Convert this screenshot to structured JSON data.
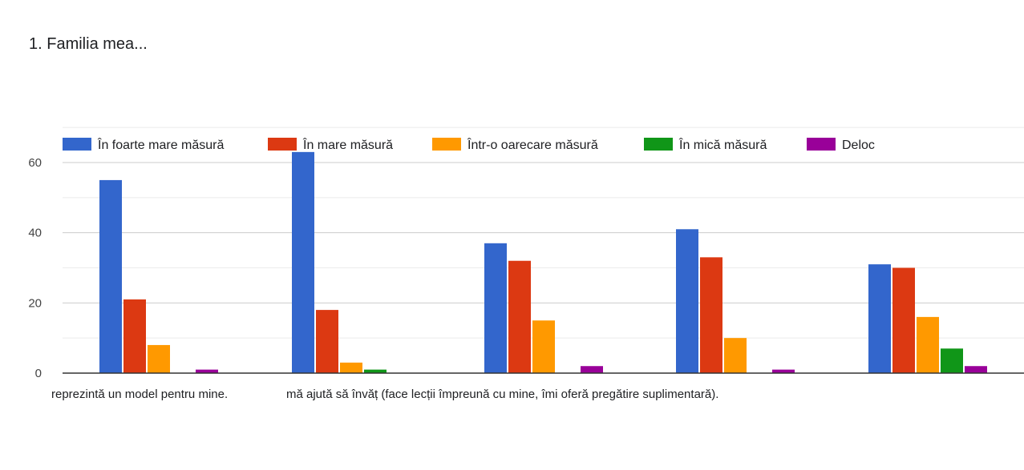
{
  "question_title": "1. Familia mea...",
  "chart_data": {
    "type": "bar",
    "title": "1. Familia mea...",
    "categories": [
      "reprezintă un model pentru mine.",
      "mă ajută să învăț (face lecții împreună cu mine, îmi oferă pregătire suplimentară).",
      "",
      "",
      ""
    ],
    "series": [
      {
        "name": "În foarte mare măsură",
        "color": "#3366cc",
        "values": [
          55,
          63,
          37,
          41,
          31
        ]
      },
      {
        "name": "În mare măsură",
        "color": "#dc3912",
        "values": [
          21,
          18,
          32,
          33,
          30
        ]
      },
      {
        "name": "Într-o oarecare măsură",
        "color": "#ff9900",
        "values": [
          8,
          3,
          15,
          10,
          16
        ]
      },
      {
        "name": "În mică măsură",
        "color": "#109618",
        "values": [
          0,
          1,
          0,
          0,
          7
        ]
      },
      {
        "name": "Deloc",
        "color": "#990099",
        "values": [
          1,
          0,
          2,
          1,
          2
        ]
      }
    ],
    "y_ticks": [
      0,
      20,
      40,
      60
    ],
    "ylim": [
      0,
      70
    ],
    "grid": true,
    "legend_position": "top"
  }
}
